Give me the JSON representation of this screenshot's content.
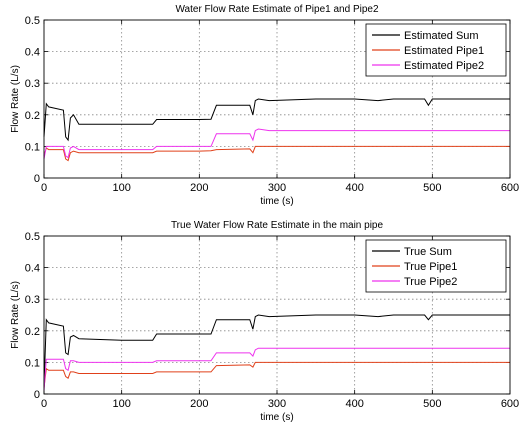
{
  "chart_data": [
    {
      "type": "line",
      "title": "Water Flow Rate Estimate of Pipe1 and Pipe2",
      "xlabel": "time (s)",
      "ylabel": "Flow Rate (L/s)",
      "xlim": [
        0,
        600
      ],
      "ylim": [
        0,
        0.5
      ],
      "xticks": [
        "0",
        "100",
        "200",
        "300",
        "400",
        "500",
        "600"
      ],
      "yticks": [
        "0",
        "0.1",
        "0.2",
        "0.3",
        "0.4",
        "0.5"
      ],
      "grid": true,
      "legend_position": "top-right",
      "series": [
        {
          "name": "Estimated Sum",
          "color": "#000000",
          "x": [
            0,
            3,
            6,
            25,
            28,
            31,
            34,
            38,
            45,
            100,
            140,
            145,
            200,
            215,
            222,
            265,
            269,
            272,
            276,
            290,
            350,
            400,
            430,
            450,
            490,
            495,
            500,
            550,
            600
          ],
          "y": [
            0.13,
            0.235,
            0.225,
            0.215,
            0.13,
            0.12,
            0.19,
            0.2,
            0.17,
            0.17,
            0.17,
            0.185,
            0.185,
            0.186,
            0.23,
            0.23,
            0.2,
            0.245,
            0.25,
            0.245,
            0.25,
            0.25,
            0.245,
            0.25,
            0.25,
            0.23,
            0.25,
            0.25,
            0.25
          ]
        },
        {
          "name": "Estimated Pipe1",
          "color": "#e0401a",
          "x": [
            0,
            3,
            6,
            25,
            28,
            31,
            34,
            38,
            45,
            100,
            140,
            145,
            200,
            215,
            222,
            265,
            269,
            272,
            276,
            290,
            350,
            400,
            450,
            500,
            550,
            600
          ],
          "y": [
            0.07,
            0.095,
            0.09,
            0.09,
            0.06,
            0.055,
            0.08,
            0.085,
            0.08,
            0.08,
            0.08,
            0.085,
            0.085,
            0.086,
            0.09,
            0.092,
            0.08,
            0.1,
            0.1,
            0.1,
            0.1,
            0.1,
            0.1,
            0.1,
            0.1,
            0.1
          ]
        },
        {
          "name": "Estimated Pipe2",
          "color": "#ee33ee",
          "x": [
            0,
            3,
            6,
            25,
            28,
            31,
            34,
            38,
            45,
            100,
            140,
            145,
            200,
            215,
            222,
            265,
            269,
            272,
            276,
            290,
            350,
            400,
            450,
            500,
            550,
            600
          ],
          "y": [
            0.06,
            0.1,
            0.1,
            0.1,
            0.07,
            0.065,
            0.095,
            0.1,
            0.09,
            0.09,
            0.09,
            0.1,
            0.1,
            0.1,
            0.14,
            0.14,
            0.12,
            0.15,
            0.155,
            0.15,
            0.15,
            0.15,
            0.15,
            0.15,
            0.15,
            0.15
          ]
        }
      ]
    },
    {
      "type": "line",
      "title": "True Water Flow Rate Estimate in the main pipe",
      "xlabel": "time (s)",
      "ylabel": "Flow Rate (L/s)",
      "xlim": [
        0,
        600
      ],
      "ylim": [
        0,
        0.5
      ],
      "xticks": [
        "0",
        "100",
        "200",
        "300",
        "400",
        "500",
        "600"
      ],
      "yticks": [
        "0",
        "0.1",
        "0.2",
        "0.3",
        "0.4",
        "0.5"
      ],
      "grid": true,
      "legend_position": "top-right",
      "series": [
        {
          "name": "True Sum",
          "color": "#000000",
          "x": [
            0,
            3,
            6,
            25,
            28,
            31,
            34,
            38,
            45,
            100,
            140,
            145,
            200,
            215,
            222,
            265,
            269,
            272,
            276,
            290,
            350,
            400,
            430,
            450,
            490,
            495,
            500,
            550,
            600
          ],
          "y": [
            0.02,
            0.235,
            0.225,
            0.215,
            0.13,
            0.125,
            0.18,
            0.185,
            0.175,
            0.17,
            0.17,
            0.19,
            0.19,
            0.19,
            0.235,
            0.235,
            0.205,
            0.245,
            0.25,
            0.245,
            0.25,
            0.25,
            0.245,
            0.25,
            0.25,
            0.235,
            0.25,
            0.25,
            0.25
          ]
        },
        {
          "name": "True Pipe1",
          "color": "#e0401a",
          "x": [
            0,
            3,
            6,
            25,
            28,
            31,
            34,
            38,
            45,
            100,
            140,
            145,
            200,
            215,
            222,
            265,
            269,
            272,
            276,
            290,
            350,
            400,
            450,
            500,
            550,
            600
          ],
          "y": [
            0.02,
            0.08,
            0.075,
            0.075,
            0.055,
            0.05,
            0.07,
            0.07,
            0.065,
            0.065,
            0.065,
            0.07,
            0.07,
            0.07,
            0.09,
            0.092,
            0.085,
            0.1,
            0.1,
            0.1,
            0.1,
            0.1,
            0.1,
            0.1,
            0.1,
            0.1
          ]
        },
        {
          "name": "True Pipe2",
          "color": "#ee33ee",
          "x": [
            0,
            3,
            6,
            25,
            28,
            31,
            34,
            38,
            45,
            100,
            140,
            145,
            200,
            215,
            222,
            265,
            269,
            272,
            276,
            290,
            350,
            400,
            450,
            500,
            550,
            600
          ],
          "y": [
            0.01,
            0.11,
            0.11,
            0.11,
            0.08,
            0.075,
            0.105,
            0.105,
            0.1,
            0.1,
            0.1,
            0.105,
            0.105,
            0.105,
            0.13,
            0.13,
            0.12,
            0.14,
            0.145,
            0.145,
            0.145,
            0.145,
            0.145,
            0.145,
            0.145,
            0.145
          ]
        }
      ]
    }
  ]
}
